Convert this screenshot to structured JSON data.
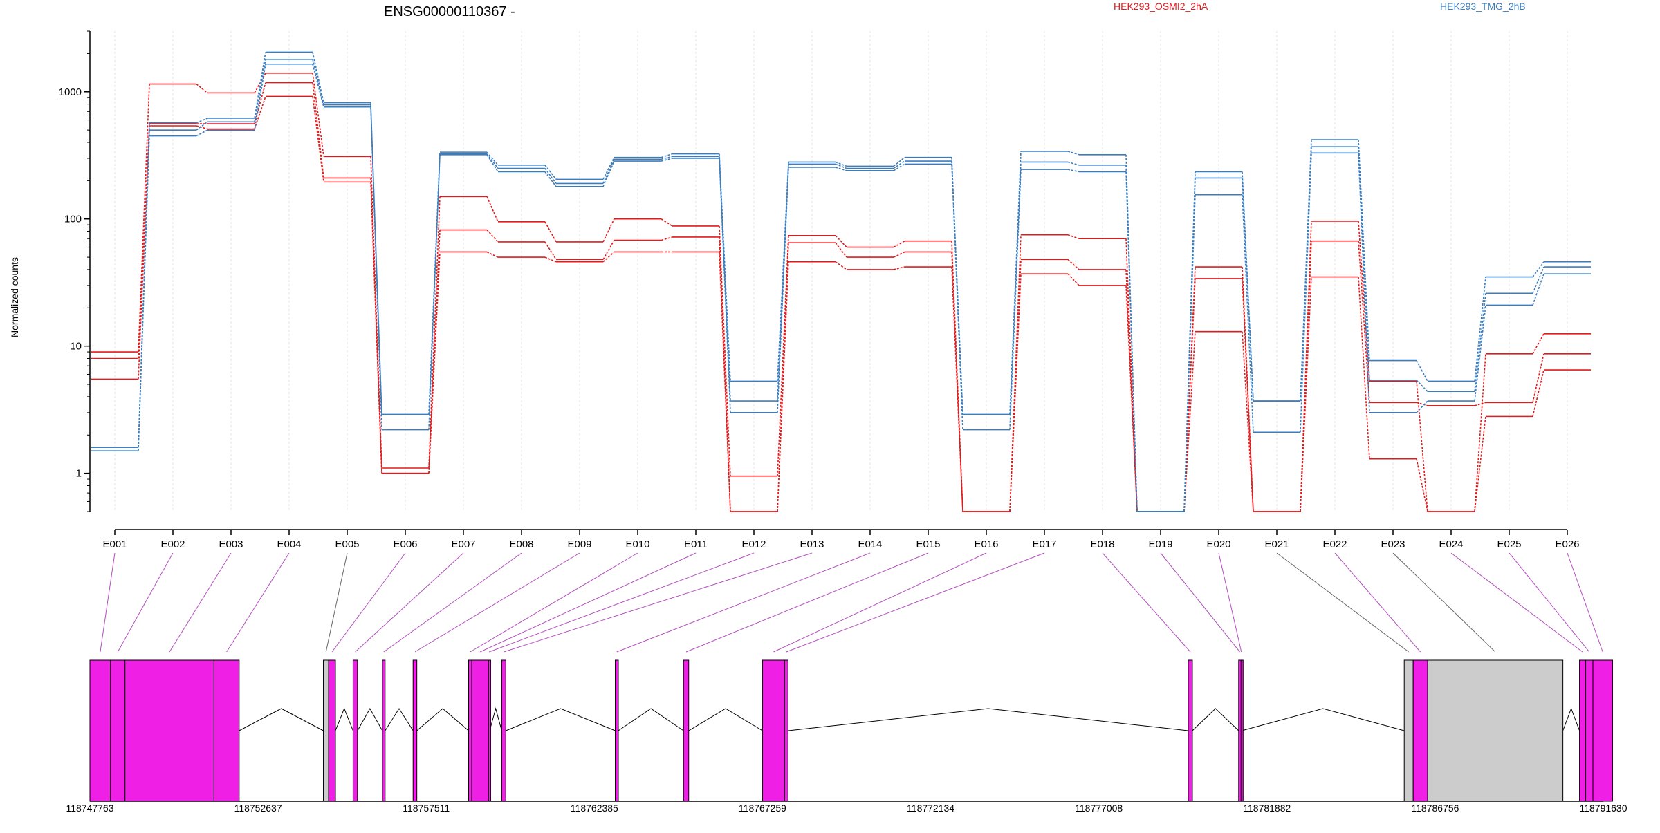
{
  "chart_data": {
    "type": "line",
    "title": "ENSG00000110367 -",
    "ylabel": "Normalized counts",
    "yscale": "log",
    "ylim": [
      0.5,
      3000
    ],
    "yticks": [
      1,
      10,
      100,
      1000
    ],
    "ytick_labels": [
      "1",
      "10",
      "100",
      "1000"
    ],
    "categories": [
      "E001",
      "E002",
      "E003",
      "E004",
      "E005",
      "E006",
      "E007",
      "E008",
      "E009",
      "E010",
      "E011",
      "E012",
      "E013",
      "E014",
      "E015",
      "E016",
      "E017",
      "E018",
      "E019",
      "E020",
      "E021",
      "E022",
      "E023",
      "E024",
      "E025",
      "E026"
    ],
    "legend_position": "top",
    "series": [
      {
        "name": "HEK293_OSMI2_2hA",
        "color": "#e31a1c",
        "values": [
          9,
          1150,
          980,
          1400,
          310,
          1.1,
          150,
          95,
          66,
          100,
          88,
          0.95,
          74,
          60,
          67,
          0.5,
          75,
          70,
          0.5,
          42,
          0.5,
          96,
          5.3,
          0.5,
          8.7,
          12.5
        ]
      },
      {
        "name": "HEK293_OSMI2_2hA",
        "color": "#e31a1c",
        "values": [
          8,
          560,
          560,
          1180,
          210,
          1.0,
          82,
          66,
          48,
          68,
          72,
          0.5,
          65,
          50,
          55,
          0.5,
          48,
          40,
          0.5,
          34,
          0.5,
          67,
          3.6,
          3.4,
          3.6,
          8.7
        ]
      },
      {
        "name": "HEK293_OSMI2_2hA",
        "color": "#e31a1c",
        "values": [
          5.5,
          540,
          510,
          920,
          195,
          1.0,
          55,
          50,
          46,
          55,
          55,
          0.5,
          46,
          40,
          42,
          0.5,
          37,
          30,
          0.5,
          13,
          0.5,
          35,
          1.3,
          0.5,
          2.8,
          6.5
        ]
      },
      {
        "name": "HEK293_TMG_2hB",
        "color": "#3a7dbf",
        "values": [
          1.6,
          570,
          620,
          2050,
          820,
          2.9,
          335,
          265,
          205,
          305,
          325,
          5.3,
          280,
          260,
          305,
          2.9,
          340,
          320,
          0.5,
          235,
          3.7,
          420,
          7.7,
          5.3,
          35,
          46
        ]
      },
      {
        "name": "HEK293_TMG_2hB",
        "color": "#3a7dbf",
        "values": [
          1.6,
          500,
          580,
          1800,
          790,
          2.9,
          325,
          250,
          190,
          295,
          310,
          3.7,
          270,
          250,
          285,
          2.9,
          280,
          265,
          0.5,
          210,
          3.7,
          370,
          5.4,
          4.4,
          26,
          42
        ]
      },
      {
        "name": "HEK293_TMG_2hB",
        "color": "#3a7dbf",
        "values": [
          1.5,
          450,
          500,
          1650,
          760,
          2.2,
          320,
          235,
          180,
          285,
          300,
          3.0,
          255,
          240,
          270,
          2.2,
          245,
          235,
          0.5,
          155,
          2.1,
          330,
          3.0,
          3.7,
          21,
          37
        ]
      }
    ],
    "legend": [
      {
        "label": "HEK293_OSMI2_2hA",
        "color": "#e31a1c"
      },
      {
        "label": "HEK293_TMG_2hB",
        "color": "#3a7dbf"
      }
    ]
  },
  "gene_model": {
    "genomic_ticks": [
      "118747763",
      "118752637",
      "118757511",
      "118762385",
      "118767259",
      "118772134",
      "118777008",
      "118781882",
      "118786756",
      "118791630"
    ],
    "start": 118747763,
    "end": 118791630,
    "colors": {
      "exon": "#f01fe6",
      "noncoding": "#cccccc",
      "link": "#b24fbd"
    },
    "exons": [
      {
        "id": "E001",
        "start": 118747763,
        "end": 118748360,
        "kind": "exon"
      },
      {
        "id": "E002",
        "start": 118748360,
        "end": 118748780,
        "kind": "exon"
      },
      {
        "id": "E003",
        "start": 118748780,
        "end": 118751360,
        "kind": "exon"
      },
      {
        "id": "E004",
        "start": 118751360,
        "end": 118752090,
        "kind": "exon"
      },
      {
        "id": "E005",
        "start": 118754530,
        "end": 118754680,
        "kind": "noncoding"
      },
      {
        "id": "E006",
        "start": 118754680,
        "end": 118754880,
        "kind": "exon"
      },
      {
        "id": "E007",
        "start": 118755390,
        "end": 118755520,
        "kind": "exon"
      },
      {
        "id": "E008",
        "start": 118756240,
        "end": 118756320,
        "kind": "exon"
      },
      {
        "id": "E009",
        "start": 118757130,
        "end": 118757240,
        "kind": "exon"
      },
      {
        "id": "E010",
        "start": 118758740,
        "end": 118758830,
        "kind": "exon"
      },
      {
        "id": "E011",
        "start": 118758830,
        "end": 118759320,
        "kind": "exon"
      },
      {
        "id": "E012",
        "start": 118759320,
        "end": 118759350,
        "kind": "exon"
      },
      {
        "id": "E013",
        "start": 118759700,
        "end": 118759820,
        "kind": "exon"
      },
      {
        "id": "E014",
        "start": 118762990,
        "end": 118763080,
        "kind": "exon"
      },
      {
        "id": "E015",
        "start": 118764970,
        "end": 118765120,
        "kind": "exon"
      },
      {
        "id": "E016",
        "start": 118767260,
        "end": 118767900,
        "kind": "exon"
      },
      {
        "id": "E017",
        "start": 118767900,
        "end": 118768000,
        "kind": "exon"
      },
      {
        "id": "E018",
        "start": 118779600,
        "end": 118779720,
        "kind": "exon"
      },
      {
        "id": "E019",
        "start": 118781060,
        "end": 118781130,
        "kind": "exon"
      },
      {
        "id": "E020",
        "start": 118781130,
        "end": 118781150,
        "kind": "exon"
      },
      {
        "id": "E021",
        "start": 118785860,
        "end": 118786120,
        "kind": "noncoding"
      },
      {
        "id": "E022",
        "start": 118786120,
        "end": 118786540,
        "kind": "exon"
      },
      {
        "id": "E023",
        "start": 118786540,
        "end": 118790460,
        "kind": "noncoding"
      },
      {
        "id": "E024",
        "start": 118790940,
        "end": 118791120,
        "kind": "exon"
      },
      {
        "id": "E025",
        "start": 118791120,
        "end": 118791330,
        "kind": "exon"
      },
      {
        "id": "E026",
        "start": 118791330,
        "end": 118791900,
        "kind": "exon"
      }
    ]
  }
}
